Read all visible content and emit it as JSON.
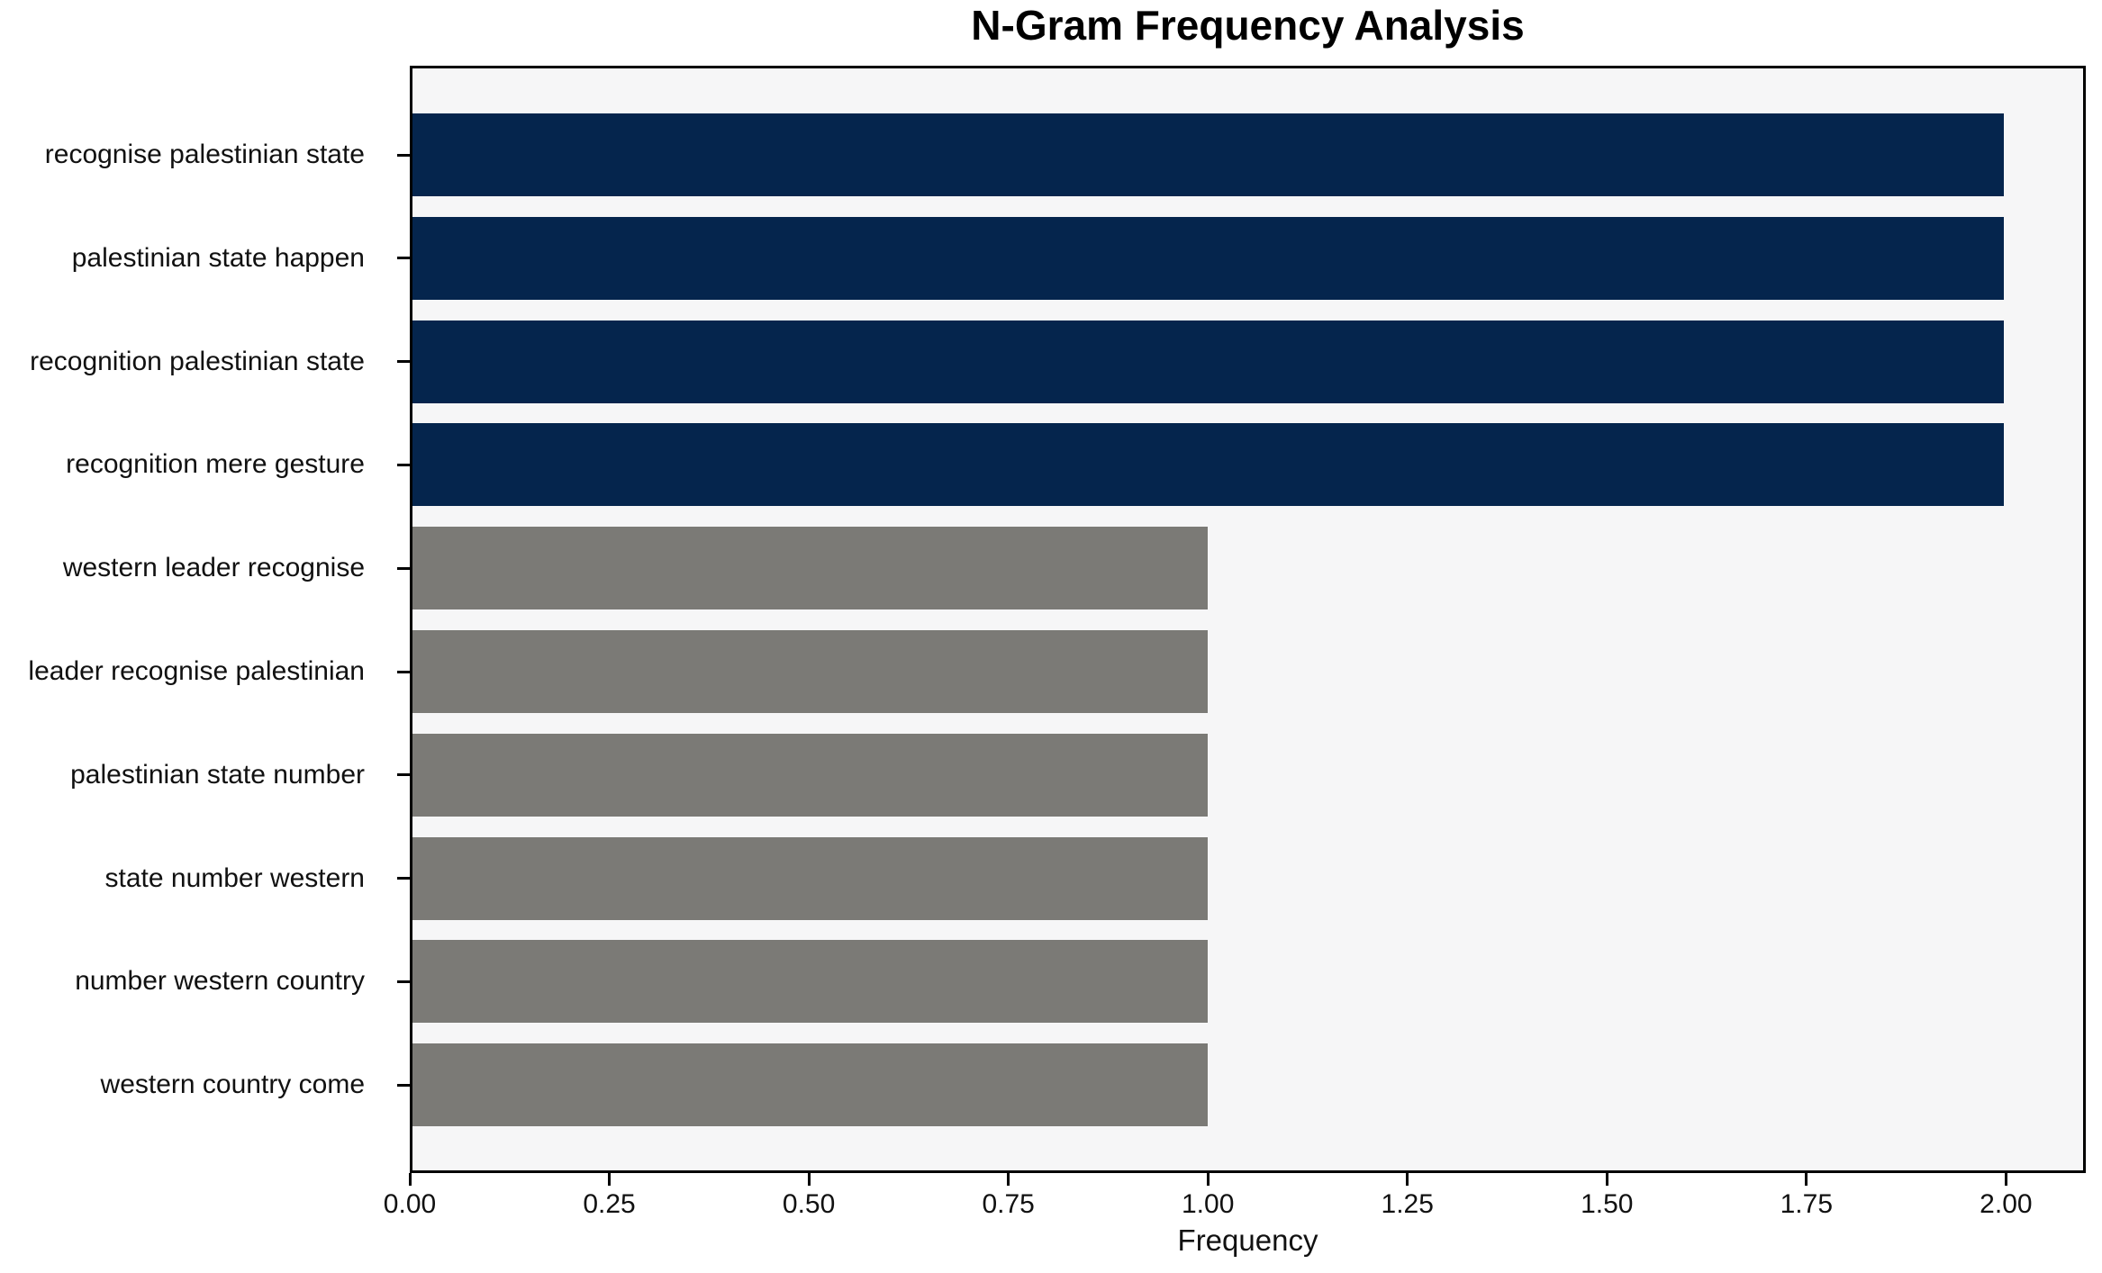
{
  "chart_data": {
    "type": "bar",
    "orientation": "horizontal",
    "title": "N-Gram Frequency Analysis",
    "xlabel": "Frequency",
    "ylabel": "",
    "categories": [
      "recognise palestinian state",
      "palestinian state happen",
      "recognition palestinian state",
      "recognition mere gesture",
      "western leader recognise",
      "leader recognise palestinian",
      "palestinian state number",
      "state number western",
      "number western country",
      "western country come"
    ],
    "values": [
      2,
      2,
      2,
      2,
      1,
      1,
      1,
      1,
      1,
      1
    ],
    "bar_colors": [
      "#05254d",
      "#05254d",
      "#05254d",
      "#05254d",
      "#7b7a76",
      "#7b7a76",
      "#7b7a76",
      "#7b7a76",
      "#7b7a76",
      "#7b7a76"
    ],
    "xlim": [
      0,
      2.1
    ],
    "xticks": [
      0.0,
      0.25,
      0.5,
      0.75,
      1.0,
      1.25,
      1.5,
      1.75,
      2.0
    ],
    "xtick_labels": [
      "0.00",
      "0.25",
      "0.50",
      "0.75",
      "1.00",
      "1.25",
      "1.50",
      "1.75",
      "2.00"
    ],
    "grid": false,
    "legend": false,
    "plot_background": "#f6f6f7",
    "figure_background": "#ffffff",
    "colors": {
      "high_frequency_bar": "#05254d",
      "low_frequency_bar": "#7b7a76",
      "spine": "#000000",
      "text": "#111111"
    }
  }
}
